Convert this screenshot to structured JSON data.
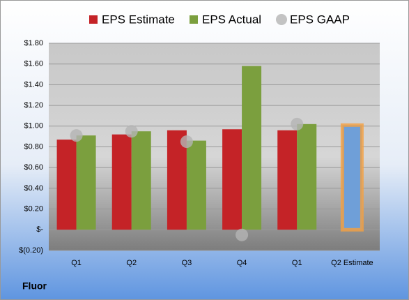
{
  "chart_data": {
    "type": "bar",
    "title": "Fluor",
    "categories": [
      "Q1",
      "Q2",
      "Q3",
      "Q4",
      "Q1",
      "Q2 Estimate"
    ],
    "series": [
      {
        "name": "EPS Estimate",
        "color": "#c42327",
        "values": [
          0.87,
          0.92,
          0.96,
          0.97,
          0.96,
          1.01
        ],
        "colors": [
          "#c42327",
          "#c42327",
          "#c42327",
          "#c42327",
          "#c42327",
          "#6f9fd8"
        ]
      },
      {
        "name": "EPS Actual",
        "color": "#7b9f3e",
        "values": [
          0.91,
          0.95,
          0.86,
          1.58,
          1.02,
          null
        ]
      },
      {
        "name": "EPS GAAP",
        "color": "#b4b4b4",
        "marker": "circle",
        "values": [
          0.91,
          0.95,
          0.85,
          -0.05,
          1.02,
          null
        ]
      }
    ],
    "ylim": [
      -0.2,
      1.8
    ],
    "yticks": [
      {
        "value": -0.2,
        "label": "$(0.20)"
      },
      {
        "value": 0,
        "label": "$-"
      },
      {
        "value": 0.2,
        "label": "$0.20"
      },
      {
        "value": 0.4,
        "label": "$0.40"
      },
      {
        "value": 0.6,
        "label": "$0.60"
      },
      {
        "value": 0.8,
        "label": "$0.80"
      },
      {
        "value": 1.0,
        "label": "$1.00"
      },
      {
        "value": 1.2,
        "label": "$1.20"
      },
      {
        "value": 1.4,
        "label": "$1.40"
      },
      {
        "value": 1.6,
        "label": "$1.60"
      },
      {
        "value": 1.8,
        "label": "$1.80"
      }
    ],
    "grid": true,
    "legend": "top"
  }
}
